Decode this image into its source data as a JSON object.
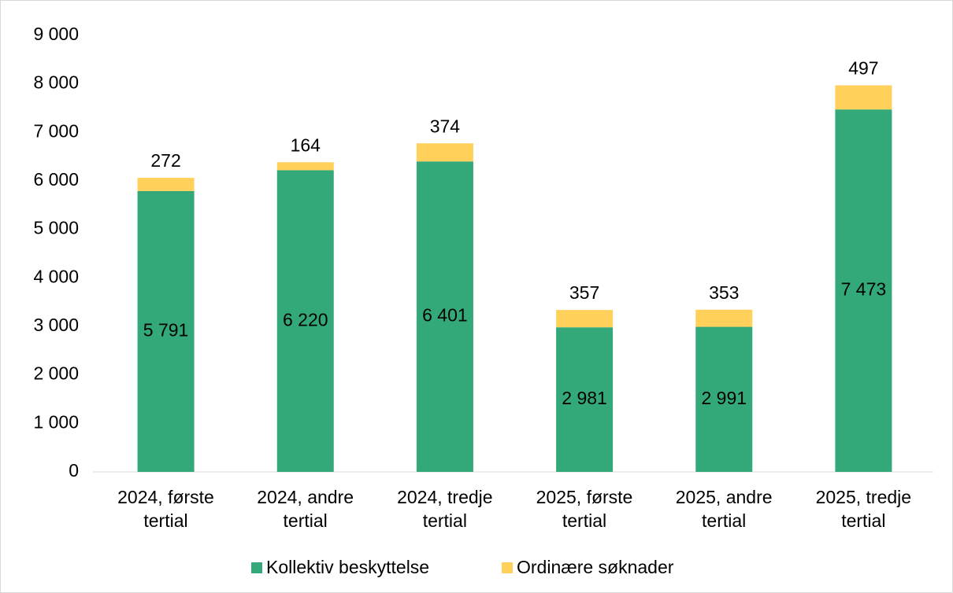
{
  "chart_data": {
    "type": "stacked_bar",
    "categories": [
      "2024, første tertial",
      "2024, andre tertial",
      "2024, tredje tertial",
      "2025, første tertial",
      "2025, andre tertial",
      "2025, tredje tertial"
    ],
    "series": [
      {
        "name": "Kollektiv beskyttelse",
        "color": "#33a97a",
        "values": [
          5791,
          6220,
          6401,
          2981,
          2991,
          7473
        ],
        "value_labels": [
          "5 791",
          "6 220",
          "6 401",
          "2 981",
          "2 991",
          "7 473"
        ]
      },
      {
        "name": "Ordinære søknader",
        "color": "#ffd05a",
        "values": [
          272,
          164,
          374,
          357,
          353,
          497
        ]
      }
    ],
    "ylim": [
      0,
      9000
    ],
    "yticks": [
      0,
      {
        "value": 1000,
        "label": "1 000"
      },
      {
        "value": 2000,
        "label": "2 000"
      },
      {
        "value": 3000,
        "label": "3 000"
      },
      {
        "value": 4000,
        "label": "4 000"
      },
      {
        "value": 5000,
        "label": "5 000"
      },
      {
        "value": 6000,
        "label": "6 000"
      },
      {
        "value": 7000,
        "label": "7 000"
      },
      {
        "value": 8000,
        "label": "8 000"
      },
      {
        "value": 9000,
        "label": "9 000"
      }
    ],
    "legend": "bottom"
  }
}
